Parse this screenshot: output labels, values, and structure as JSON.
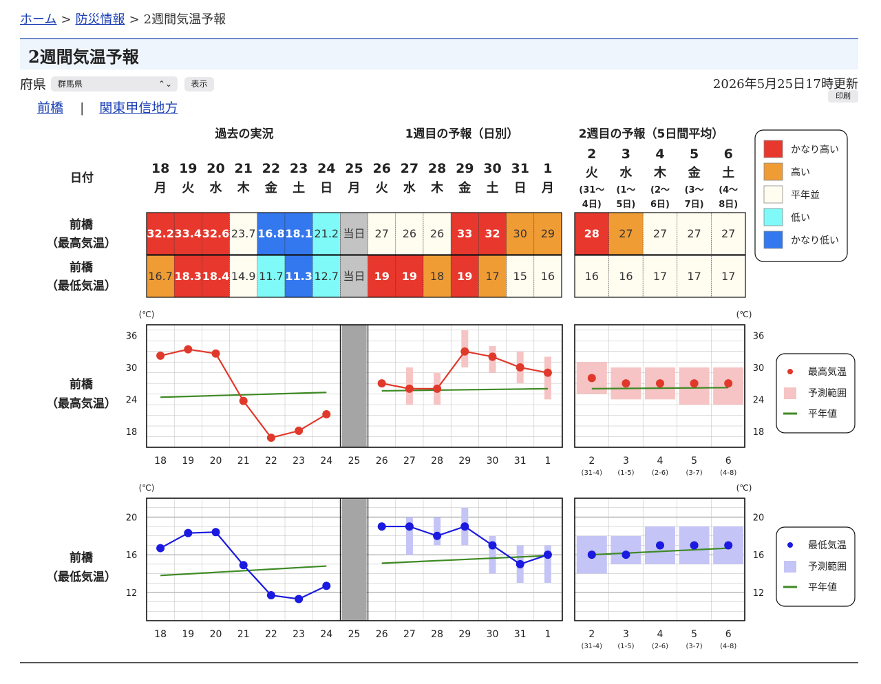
{
  "breadcrumb": {
    "home": "ホーム",
    "disaster": "防災情報",
    "current": "2週間気温予報",
    "sep": ">"
  },
  "page_title": "2週間気温予報",
  "controls": {
    "pref_label": "府県",
    "pref_value": "群馬県",
    "show_button": "表示",
    "update_time": "2026年5月25日17時更新",
    "print_button": "印刷"
  },
  "sub_links": {
    "city": "前橋",
    "pipe": "|",
    "region": "関東甲信地方"
  },
  "table": {
    "section_headers": [
      "過去の実況",
      "1週目の予報（日別）",
      "2週目の予報（5日間平均）"
    ],
    "date_label": "日付",
    "days": [
      "18",
      "19",
      "20",
      "21",
      "22",
      "23",
      "24",
      "25",
      "26",
      "27",
      "28",
      "29",
      "30",
      "31",
      "1"
    ],
    "weekdays": [
      "月",
      "火",
      "水",
      "木",
      "金",
      "土",
      "日",
      "月",
      "火",
      "水",
      "木",
      "金",
      "土",
      "日",
      "月"
    ],
    "week2_days": [
      "2",
      "3",
      "4",
      "5",
      "6"
    ],
    "week2_weekdays": [
      "火",
      "水",
      "木",
      "金",
      "土"
    ],
    "week2_ranges": [
      [
        "(31〜",
        "4日)"
      ],
      [
        "(1〜",
        "5日)"
      ],
      [
        "(2〜",
        "6日)"
      ],
      [
        "(3〜",
        "7日)"
      ],
      [
        "(4〜",
        "8日)"
      ]
    ],
    "rows": [
      {
        "label": [
          "前橋",
          "（最高気温）"
        ],
        "cells": [
          {
            "v": "32.2",
            "c": "vh"
          },
          {
            "v": "33.4",
            "c": "vh"
          },
          {
            "v": "32.6",
            "c": "vh"
          },
          {
            "v": "23.7",
            "c": "n"
          },
          {
            "v": "16.8",
            "c": "vl"
          },
          {
            "v": "18.1",
            "c": "vl"
          },
          {
            "v": "21.2",
            "c": "l"
          },
          {
            "v": "当日",
            "c": "today"
          },
          {
            "v": "27",
            "c": "n"
          },
          {
            "v": "26",
            "c": "n"
          },
          {
            "v": "26",
            "c": "n"
          },
          {
            "v": "33",
            "c": "vh"
          },
          {
            "v": "32",
            "c": "vh"
          },
          {
            "v": "30",
            "c": "h"
          },
          {
            "v": "29",
            "c": "h"
          }
        ],
        "week2": [
          {
            "v": "28",
            "c": "vh"
          },
          {
            "v": "27",
            "c": "h"
          },
          {
            "v": "27",
            "c": "n"
          },
          {
            "v": "27",
            "c": "n"
          },
          {
            "v": "27",
            "c": "n"
          }
        ]
      },
      {
        "label": [
          "前橋",
          "（最低気温）"
        ],
        "cells": [
          {
            "v": "16.7",
            "c": "h"
          },
          {
            "v": "18.3",
            "c": "vh"
          },
          {
            "v": "18.4",
            "c": "vh"
          },
          {
            "v": "14.9",
            "c": "n"
          },
          {
            "v": "11.7",
            "c": "l"
          },
          {
            "v": "11.3",
            "c": "vl"
          },
          {
            "v": "12.7",
            "c": "l"
          },
          {
            "v": "当日",
            "c": "today"
          },
          {
            "v": "19",
            "c": "vh"
          },
          {
            "v": "19",
            "c": "vh"
          },
          {
            "v": "18",
            "c": "h"
          },
          {
            "v": "19",
            "c": "vh"
          },
          {
            "v": "17",
            "c": "h"
          },
          {
            "v": "15",
            "c": "n"
          },
          {
            "v": "16",
            "c": "n"
          }
        ],
        "week2": [
          {
            "v": "16",
            "c": "n"
          },
          {
            "v": "16",
            "c": "n"
          },
          {
            "v": "17",
            "c": "n"
          },
          {
            "v": "17",
            "c": "n"
          },
          {
            "v": "17",
            "c": "n"
          }
        ]
      }
    ]
  },
  "colors": {
    "vh": "#e8382d",
    "h": "#f09c35",
    "n": "#fffcf0",
    "l": "#7ffaf9",
    "vl": "#3378ee",
    "today": "#c3c3c3",
    "normal_line": "#3e8a25",
    "max_point": "#e0392b",
    "max_range": "#f6c4c4",
    "min_point": "#1a1ae0",
    "min_range": "#c4c4f6"
  },
  "legend": [
    {
      "label": "かなり高い",
      "c": "vh"
    },
    {
      "label": "高い",
      "c": "h"
    },
    {
      "label": "平年並",
      "c": "n"
    },
    {
      "label": "低い",
      "c": "l"
    },
    {
      "label": "かなり低い",
      "c": "vl"
    }
  ],
  "chart_data": [
    {
      "type": "line",
      "row_label": [
        "前橋",
        "（最高気温）"
      ],
      "unit": "(℃)",
      "yticks": [
        18,
        24,
        30,
        36
      ],
      "ylim": [
        15,
        38
      ],
      "x": [
        "18",
        "19",
        "20",
        "21",
        "22",
        "23",
        "24",
        "25",
        "26",
        "27",
        "28",
        "29",
        "30",
        "31",
        "1"
      ],
      "observed": [
        32.2,
        33.4,
        32.6,
        23.7,
        16.8,
        18.1,
        21.2
      ],
      "forecast": [
        27,
        26,
        26,
        33,
        32,
        30,
        29
      ],
      "forecast_range": [
        null,
        [
          23,
          30
        ],
        [
          23,
          29
        ],
        [
          30,
          37
        ],
        [
          29,
          34
        ],
        [
          27,
          33
        ],
        [
          24,
          32
        ]
      ],
      "normal_past": [
        24.4,
        25.3
      ],
      "normal_week1": [
        25.6,
        26.0
      ],
      "week2_x": [
        "2",
        "3",
        "4",
        "5",
        "6"
      ],
      "week2_sub": [
        "(31-4)",
        "(1-5)",
        "(2-6)",
        "(3-7)",
        "(4-8)"
      ],
      "week2_values": [
        28,
        27,
        27,
        27,
        27
      ],
      "week2_range": [
        [
          25,
          31
        ],
        [
          24,
          30
        ],
        [
          24,
          30
        ],
        [
          23,
          30
        ],
        [
          23,
          30
        ]
      ],
      "week2_normal": [
        26.0,
        26.2
      ],
      "legend": [
        "最高気温",
        "予測範囲",
        "平年値"
      ]
    },
    {
      "type": "line",
      "row_label": [
        "前橋",
        "（最低気温）"
      ],
      "unit": "(℃)",
      "yticks": [
        12,
        16,
        20
      ],
      "ylim": [
        9,
        22
      ],
      "x": [
        "18",
        "19",
        "20",
        "21",
        "22",
        "23",
        "24",
        "25",
        "26",
        "27",
        "28",
        "29",
        "30",
        "31",
        "1"
      ],
      "observed": [
        16.7,
        18.3,
        18.4,
        14.9,
        11.7,
        11.3,
        12.7
      ],
      "forecast": [
        19,
        19,
        18,
        19,
        17,
        15,
        16
      ],
      "forecast_range": [
        null,
        [
          16,
          20
        ],
        [
          17,
          20
        ],
        [
          17,
          21
        ],
        [
          14,
          18
        ],
        [
          13,
          17
        ],
        [
          13,
          17
        ]
      ],
      "normal_past": [
        13.8,
        14.8
      ],
      "normal_week1": [
        15.1,
        15.9
      ],
      "week2_x": [
        "2",
        "3",
        "4",
        "5",
        "6"
      ],
      "week2_sub": [
        "(31-4)",
        "(1-5)",
        "(2-6)",
        "(3-7)",
        "(4-8)"
      ],
      "week2_values": [
        16,
        16,
        17,
        17,
        17
      ],
      "week2_range": [
        [
          14,
          18
        ],
        [
          15,
          18
        ],
        [
          15,
          19
        ],
        [
          15,
          19
        ],
        [
          15,
          19
        ]
      ],
      "week2_normal": [
        16.0,
        16.7
      ],
      "legend": [
        "最低気温",
        "予測範囲",
        "平年値"
      ]
    }
  ]
}
